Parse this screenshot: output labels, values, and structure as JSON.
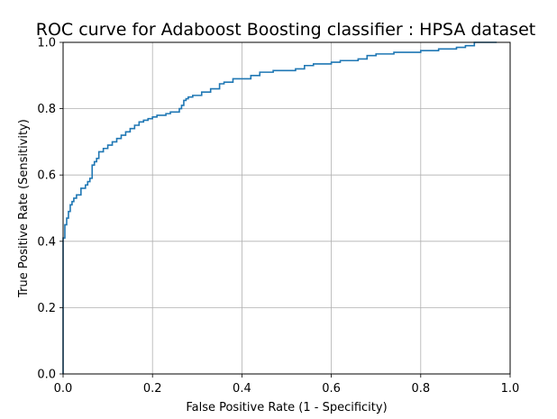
{
  "chart_data": {
    "type": "line",
    "title": "ROC curve for Adaboost Boosting classifier : HPSA dataset",
    "xlabel": "False Positive Rate (1 - Specificity)",
    "ylabel": "True Positive Rate (Sensitivity)",
    "xlim": [
      0.0,
      1.0
    ],
    "ylim": [
      0.0,
      1.0
    ],
    "xticks": [
      "0.0",
      "0.2",
      "0.4",
      "0.6",
      "0.8",
      "1.0"
    ],
    "yticks": [
      "0.0",
      "0.2",
      "0.4",
      "0.6",
      "0.8",
      "1.0"
    ],
    "grid": true,
    "series": [
      {
        "color": "#1f77b4",
        "x": [
          0.0,
          0.0,
          0.004,
          0.004,
          0.008,
          0.008,
          0.012,
          0.012,
          0.016,
          0.016,
          0.02,
          0.02,
          0.024,
          0.024,
          0.03,
          0.03,
          0.04,
          0.04,
          0.05,
          0.05,
          0.055,
          0.055,
          0.06,
          0.06,
          0.065,
          0.065,
          0.07,
          0.07,
          0.075,
          0.075,
          0.08,
          0.08,
          0.09,
          0.09,
          0.1,
          0.1,
          0.11,
          0.11,
          0.12,
          0.12,
          0.13,
          0.13,
          0.14,
          0.14,
          0.15,
          0.15,
          0.16,
          0.16,
          0.17,
          0.17,
          0.18,
          0.18,
          0.19,
          0.19,
          0.2,
          0.2,
          0.21,
          0.21,
          0.23,
          0.23,
          0.24,
          0.24,
          0.26,
          0.26,
          0.265,
          0.265,
          0.27,
          0.27,
          0.275,
          0.275,
          0.28,
          0.28,
          0.29,
          0.29,
          0.31,
          0.31,
          0.33,
          0.33,
          0.35,
          0.35,
          0.36,
          0.36,
          0.38,
          0.38,
          0.42,
          0.42,
          0.44,
          0.44,
          0.47,
          0.47,
          0.52,
          0.52,
          0.54,
          0.54,
          0.56,
          0.56,
          0.6,
          0.6,
          0.62,
          0.62,
          0.66,
          0.66,
          0.68,
          0.68,
          0.7,
          0.7,
          0.74,
          0.74,
          0.8,
          0.8,
          0.84,
          0.84,
          0.88,
          0.88,
          0.9,
          0.9,
          0.92,
          0.92,
          0.97
        ],
        "y": [
          0.0,
          0.41,
          0.41,
          0.45,
          0.45,
          0.47,
          0.47,
          0.49,
          0.49,
          0.51,
          0.51,
          0.52,
          0.52,
          0.53,
          0.53,
          0.54,
          0.54,
          0.56,
          0.56,
          0.57,
          0.57,
          0.58,
          0.58,
          0.59,
          0.59,
          0.63,
          0.63,
          0.64,
          0.64,
          0.65,
          0.65,
          0.67,
          0.67,
          0.68,
          0.68,
          0.69,
          0.69,
          0.7,
          0.7,
          0.71,
          0.71,
          0.72,
          0.72,
          0.73,
          0.73,
          0.74,
          0.74,
          0.75,
          0.75,
          0.76,
          0.76,
          0.765,
          0.765,
          0.77,
          0.77,
          0.775,
          0.775,
          0.78,
          0.78,
          0.785,
          0.785,
          0.79,
          0.79,
          0.8,
          0.8,
          0.81,
          0.81,
          0.825,
          0.825,
          0.83,
          0.83,
          0.835,
          0.835,
          0.84,
          0.84,
          0.85,
          0.85,
          0.86,
          0.86,
          0.875,
          0.875,
          0.88,
          0.88,
          0.89,
          0.89,
          0.9,
          0.9,
          0.91,
          0.91,
          0.915,
          0.915,
          0.92,
          0.92,
          0.93,
          0.93,
          0.935,
          0.935,
          0.94,
          0.94,
          0.945,
          0.945,
          0.95,
          0.95,
          0.96,
          0.96,
          0.965,
          0.965,
          0.97,
          0.97,
          0.975,
          0.975,
          0.98,
          0.98,
          0.985,
          0.985,
          0.99,
          0.99,
          1.0,
          1.0
        ]
      }
    ]
  }
}
